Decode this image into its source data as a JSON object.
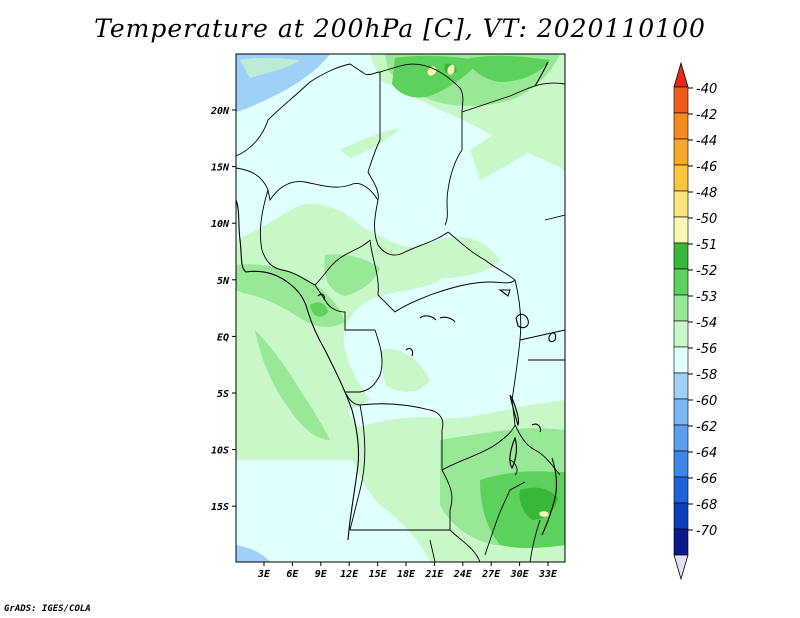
{
  "title": "Temperature at 200hPa [C], VT: 2020110100",
  "credit": "GrADS: IGES/COLA",
  "map": {
    "lon_ticks": [
      "3E",
      "6E",
      "9E",
      "12E",
      "15E",
      "18E",
      "21E",
      "24E",
      "27E",
      "30E",
      "33E"
    ],
    "lat_ticks": [
      "20N",
      "15N",
      "10N",
      "5N",
      "EQ",
      "5S",
      "10S",
      "15S"
    ]
  },
  "legend": {
    "labels": [
      "-40",
      "-42",
      "-44",
      "-46",
      "-48",
      "-50",
      "-51",
      "-52",
      "-53",
      "-54",
      "-56",
      "-58",
      "-60",
      "-62",
      "-64",
      "-66",
      "-68",
      "-70"
    ],
    "colors": [
      "#e8281a",
      "#f05a18",
      "#f58a1e",
      "#f8a828",
      "#fbc63c",
      "#fde37a",
      "#f8f8b0",
      "#38b838",
      "#5cd25c",
      "#98e898",
      "#c8f8c8",
      "#e0ffff",
      "#9ed0f8",
      "#78b8f4",
      "#5aa0ee",
      "#3c86e6",
      "#1e64d8",
      "#0e40b8",
      "#0a1a8c",
      "#e0e0f4"
    ]
  },
  "colors": {
    "background_field": "#e0ffff",
    "band_54": "#c8f8c8",
    "band_53": "#98e898",
    "band_52": "#5cd25c",
    "band_51": "#38b838",
    "band_56": "#9ed0f8"
  }
}
